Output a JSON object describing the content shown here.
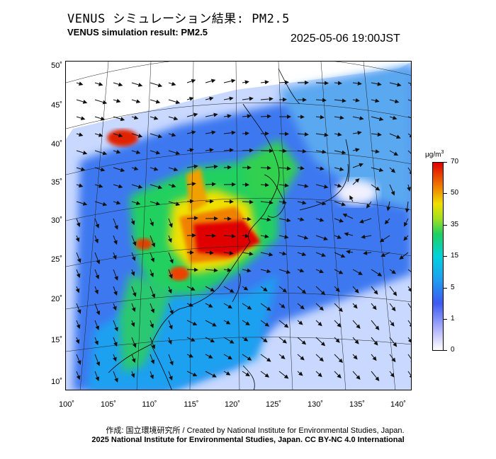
{
  "header": {
    "title_jp": "VENUS シミュレーション結果: PM2.5",
    "title_en": "VENUS simulation result: PM2.5",
    "timestamp": "2025-05-06 19:00JST"
  },
  "map": {
    "lat_labels": [
      "50˚",
      "45˚",
      "40˚",
      "35˚",
      "30˚",
      "25˚",
      "20˚",
      "15˚",
      "10˚"
    ],
    "lon_labels": [
      "100˚",
      "105˚",
      "110˚",
      "115˚",
      "120˚",
      "125˚",
      "130˚",
      "135˚",
      "140˚"
    ],
    "variable": "PM2.5 concentration with wind vectors",
    "colors": {
      "low": "#c8c8ff",
      "mid": "#00d2dc",
      "green": "#20d060",
      "high": "#e00000"
    }
  },
  "colorbar": {
    "unit": "μg/m",
    "unit_sup": "3",
    "labels": [
      "70",
      "50",
      "35",
      "15",
      "5",
      "1",
      "0"
    ]
  },
  "footer": {
    "credit": "作成: 国立環境研究所 / Created by National Institute for Environmental Studies, Japan.",
    "license": "2025 National Institute for Environmental Studies, Japan. CC BY-NC 4.0 International"
  }
}
